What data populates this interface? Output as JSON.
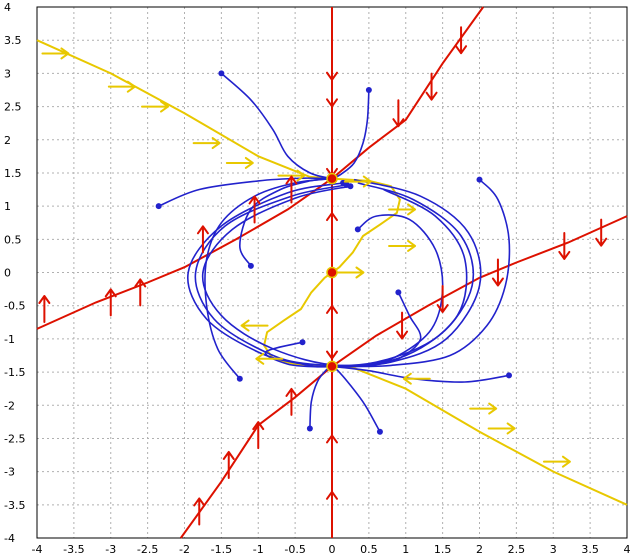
{
  "chart_data": {
    "type": "phase-portrait",
    "title": "",
    "xlabel": "",
    "ylabel": "",
    "xlim": [
      -4,
      4
    ],
    "ylim": [
      -4,
      4
    ],
    "grid": true,
    "x_ticks": [
      "-4",
      "-3.5",
      "-3",
      "-2.5",
      "-2",
      "-1.5",
      "-1",
      "-0.5",
      "0",
      "0.5",
      "1",
      "1.5",
      "2",
      "2.5",
      "3",
      "3.5",
      "4"
    ],
    "y_ticks": [
      "4",
      "3.5",
      "3",
      "2.5",
      "2",
      "1.5",
      "1",
      "0.5",
      "0",
      "-0.5",
      "-1",
      "-1.5",
      "-2",
      "-2.5",
      "-3",
      "-3.5",
      "-4"
    ],
    "colors": {
      "x_nullcline": "#e8c800",
      "y_nullcline": "#dd1100",
      "trajectory": "#2222cc",
      "grid": "#b0b0b0"
    },
    "equilibria": [
      {
        "x": 0,
        "y": 1.414
      },
      {
        "x": 0,
        "y": 0
      },
      {
        "x": 0,
        "y": -1.414
      }
    ],
    "nullclines": {
      "x_nullcline": [
        [
          [
            -4,
            3.5
          ],
          [
            -3,
            3.0
          ],
          [
            -2,
            2.4
          ],
          [
            -1,
            1.75
          ],
          [
            -0.3,
            1.44
          ],
          [
            0,
            1.414
          ],
          [
            0.5,
            1.38
          ],
          [
            0.8,
            1.3
          ],
          [
            0.92,
            1.1
          ],
          [
            0.88,
            0.9
          ],
          [
            0.65,
            0.72
          ],
          [
            0.42,
            0.55
          ],
          [
            0.28,
            0.3
          ],
          [
            0.1,
            0.08
          ],
          [
            0,
            0
          ],
          [
            -0.1,
            -0.08
          ],
          [
            -0.28,
            -0.3
          ],
          [
            -0.42,
            -0.55
          ],
          [
            -0.65,
            -0.72
          ],
          [
            -0.88,
            -0.9
          ],
          [
            -0.92,
            -1.1
          ],
          [
            -0.8,
            -1.3
          ],
          [
            -0.5,
            -1.38
          ],
          [
            0,
            -1.414
          ],
          [
            0.3,
            -1.44
          ],
          [
            1,
            -1.75
          ],
          [
            2,
            -2.4
          ],
          [
            3,
            -3.0
          ],
          [
            4,
            -3.5
          ]
        ]
      ],
      "y_nullcline": [
        [
          [
            -2.05,
            -4
          ],
          [
            -1.5,
            -3.15
          ],
          [
            -1,
            -2.3
          ],
          [
            -0.5,
            -1.88
          ],
          [
            0,
            -1.414
          ],
          [
            0.6,
            -0.95
          ],
          [
            1.3,
            -0.5
          ],
          [
            2.0,
            -0.08
          ],
          [
            2.5,
            0.15
          ],
          [
            3.2,
            0.45
          ],
          [
            4,
            0.85
          ]
        ],
        [
          [
            -4,
            -0.85
          ],
          [
            -3.2,
            -0.45
          ],
          [
            -2.5,
            -0.15
          ],
          [
            -2.0,
            0.08
          ],
          [
            -1.3,
            0.5
          ],
          [
            -0.6,
            0.95
          ],
          [
            0,
            1.414
          ],
          [
            0.5,
            1.88
          ],
          [
            1,
            2.3
          ],
          [
            1.5,
            3.15
          ],
          [
            2.05,
            4
          ]
        ],
        [
          [
            0,
            -4
          ],
          [
            0,
            4
          ]
        ]
      ]
    },
    "trajectories": [
      [
        [
          -1.5,
          3.0
        ],
        [
          -1.1,
          2.6
        ],
        [
          -0.8,
          2.15
        ],
        [
          -0.6,
          1.75
        ],
        [
          -0.3,
          1.5
        ],
        [
          0,
          1.414
        ]
      ],
      [
        [
          0.5,
          2.75
        ],
        [
          0.48,
          2.3
        ],
        [
          0.42,
          1.95
        ],
        [
          0.3,
          1.65
        ],
        [
          0.12,
          1.48
        ],
        [
          0,
          1.414
        ]
      ],
      [
        [
          -2.35,
          1.0
        ],
        [
          -1.8,
          1.25
        ],
        [
          -1.0,
          1.38
        ],
        [
          -0.4,
          1.42
        ],
        [
          0,
          1.414
        ]
      ],
      [
        [
          2.0,
          1.4
        ],
        [
          2.25,
          1.1
        ],
        [
          2.4,
          0.5
        ],
        [
          2.35,
          -0.2
        ],
        [
          2.1,
          -0.8
        ],
        [
          1.6,
          -1.25
        ],
        [
          0.8,
          -1.4
        ],
        [
          0.2,
          -1.414
        ],
        [
          0,
          -1.414
        ]
      ],
      [
        [
          2.4,
          -1.55
        ],
        [
          1.8,
          -1.65
        ],
        [
          1.1,
          -1.6
        ],
        [
          0.5,
          -1.48
        ],
        [
          0,
          -1.414
        ]
      ],
      [
        [
          0.65,
          -2.4
        ],
        [
          0.45,
          -2.0
        ],
        [
          0.25,
          -1.7
        ],
        [
          0.08,
          -1.48
        ],
        [
          0,
          -1.414
        ]
      ],
      [
        [
          -0.3,
          -2.35
        ],
        [
          -0.28,
          -1.95
        ],
        [
          -0.2,
          -1.65
        ],
        [
          -0.08,
          -1.47
        ],
        [
          0,
          -1.414
        ]
      ],
      [
        [
          -1.25,
          -1.6
        ],
        [
          -1.55,
          -1.15
        ],
        [
          -1.7,
          -0.5
        ],
        [
          -1.7,
          0.2
        ],
        [
          -1.5,
          0.75
        ],
        [
          -1.05,
          1.15
        ],
        [
          -0.5,
          1.35
        ],
        [
          0,
          1.414
        ]
      ],
      [
        [
          0.9,
          -0.3
        ],
        [
          1.05,
          -0.65
        ],
        [
          1.2,
          -1.0
        ],
        [
          0.9,
          -1.3
        ],
        [
          0.5,
          -1.4
        ],
        [
          0.15,
          -1.414
        ],
        [
          0,
          -1.414
        ]
      ],
      [
        [
          -1.1,
          0.1
        ],
        [
          -1.25,
          0.4
        ],
        [
          -1.1,
          0.95
        ],
        [
          -0.7,
          1.25
        ],
        [
          -0.3,
          1.38
        ],
        [
          0,
          1.414
        ]
      ],
      [
        [
          0.35,
          0.65
        ],
        [
          0.6,
          0.85
        ],
        [
          1.05,
          0.8
        ],
        [
          1.4,
          0.35
        ],
        [
          1.5,
          -0.25
        ],
        [
          1.35,
          -0.85
        ],
        [
          0.9,
          -1.25
        ],
        [
          0.45,
          -1.4
        ],
        [
          0,
          -1.414
        ]
      ],
      [
        [
          -0.4,
          -1.05
        ],
        [
          -0.9,
          -1.2
        ],
        [
          -0.6,
          -1.38
        ],
        [
          -0.2,
          -1.42
        ],
        [
          0,
          -1.414
        ]
      ],
      [
        [
          0.15,
          1.35
        ],
        [
          -0.6,
          1.2
        ],
        [
          -1.5,
          0.7
        ],
        [
          -1.95,
          0.0
        ],
        [
          -1.7,
          -0.7
        ],
        [
          -1.0,
          -1.2
        ],
        [
          -0.4,
          -1.38
        ],
        [
          0,
          -1.414
        ],
        [
          0.8,
          -1.35
        ],
        [
          1.55,
          -1.0
        ],
        [
          2.0,
          -0.2
        ],
        [
          1.85,
          0.6
        ],
        [
          1.2,
          1.15
        ],
        [
          0.3,
          1.4
        ]
      ],
      [
        [
          0.2,
          1.32
        ],
        [
          -0.55,
          1.15
        ],
        [
          -1.45,
          0.7
        ],
        [
          -1.85,
          0.0
        ],
        [
          -1.6,
          -0.7
        ],
        [
          -0.9,
          -1.2
        ],
        [
          -0.3,
          -1.38
        ],
        [
          0.6,
          -1.35
        ],
        [
          1.45,
          -0.95
        ],
        [
          1.9,
          -0.2
        ],
        [
          1.75,
          0.55
        ],
        [
          1.1,
          1.1
        ],
        [
          0.35,
          1.35
        ]
      ],
      [
        [
          0.25,
          1.3
        ],
        [
          -0.5,
          1.12
        ],
        [
          -1.35,
          0.65
        ],
        [
          -1.75,
          0.0
        ],
        [
          -1.5,
          -0.65
        ],
        [
          -0.8,
          -1.15
        ],
        [
          0.1,
          -1.4
        ],
        [
          1.0,
          -1.25
        ],
        [
          1.7,
          -0.65
        ],
        [
          1.8,
          0.2
        ],
        [
          1.4,
          0.85
        ],
        [
          0.7,
          1.25
        ]
      ]
    ],
    "direction_arrows": {
      "x_nullcline": [
        [
          -3.75,
          3.3,
          "right"
        ],
        [
          -2.85,
          2.8,
          "right"
        ],
        [
          -2.4,
          2.5,
          "right"
        ],
        [
          -1.7,
          1.95,
          "right"
        ],
        [
          -1.25,
          1.65,
          "right"
        ],
        [
          -0.55,
          1.46,
          "right"
        ],
        [
          0.35,
          1.37,
          "right"
        ],
        [
          0.95,
          0.95,
          "right"
        ],
        [
          0.95,
          0.4,
          "right"
        ],
        [
          0.25,
          0.0,
          "right"
        ],
        [
          -1.05,
          -0.8,
          "left"
        ],
        [
          -0.85,
          -1.3,
          "left"
        ],
        [
          1.15,
          -1.6,
          "left"
        ],
        [
          2.05,
          -2.05,
          "right"
        ],
        [
          2.3,
          -2.35,
          "right"
        ],
        [
          3.05,
          -2.85,
          "right"
        ]
      ],
      "y_nullcline": [
        [
          -3.9,
          -0.55,
          "up"
        ],
        [
          -3.0,
          -0.45,
          "up"
        ],
        [
          -2.6,
          -0.3,
          "up"
        ],
        [
          -1.75,
          0.5,
          "up"
        ],
        [
          -1.05,
          0.95,
          "up"
        ],
        [
          -0.55,
          1.25,
          "up"
        ],
        [
          0.9,
          2.4,
          "down"
        ],
        [
          1.35,
          2.8,
          "down"
        ],
        [
          1.75,
          3.5,
          "down"
        ],
        [
          -1.8,
          -3.6,
          "up"
        ],
        [
          -1.4,
          -2.9,
          "up"
        ],
        [
          -1.0,
          -2.45,
          "up"
        ],
        [
          -0.55,
          -1.95,
          "up"
        ],
        [
          0.95,
          -0.8,
          "down"
        ],
        [
          1.5,
          -0.4,
          "down"
        ],
        [
          2.25,
          0.0,
          "down"
        ],
        [
          3.15,
          0.4,
          "down"
        ],
        [
          3.65,
          0.6,
          "down"
        ],
        [
          0,
          3.1,
          "down"
        ],
        [
          0,
          2.7,
          "down"
        ],
        [
          0,
          1.65,
          "down"
        ],
        [
          0,
          0.7,
          "up"
        ],
        [
          0,
          -0.7,
          "up"
        ],
        [
          0,
          -1.1,
          "down"
        ],
        [
          0,
          -2.65,
          "up"
        ],
        [
          0,
          -3.5,
          "up"
        ]
      ]
    }
  }
}
